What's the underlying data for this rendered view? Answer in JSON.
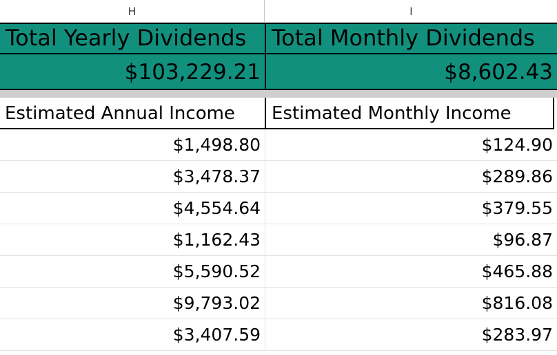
{
  "columns": {
    "h": "H",
    "i": "I"
  },
  "totals": {
    "yearly_label": "Total Yearly Dividends",
    "monthly_label": "Total Monthly Dividends",
    "yearly_value": "$103,229.21",
    "monthly_value": "$8,602.43",
    "fill_color": "#11907e"
  },
  "headers": {
    "annual": "Estimated Annual Income",
    "monthly": "Estimated Monthly Income"
  },
  "rows": [
    {
      "annual": "$1,498.80",
      "monthly": "$124.90"
    },
    {
      "annual": "$3,478.37",
      "monthly": "$289.86"
    },
    {
      "annual": "$4,554.64",
      "monthly": "$379.55"
    },
    {
      "annual": "$1,162.43",
      "monthly": "$96.87"
    },
    {
      "annual": "$5,590.52",
      "monthly": "$465.88"
    },
    {
      "annual": "$9,793.02",
      "monthly": "$816.08"
    },
    {
      "annual": "$3,407.59",
      "monthly": "$283.97"
    }
  ]
}
